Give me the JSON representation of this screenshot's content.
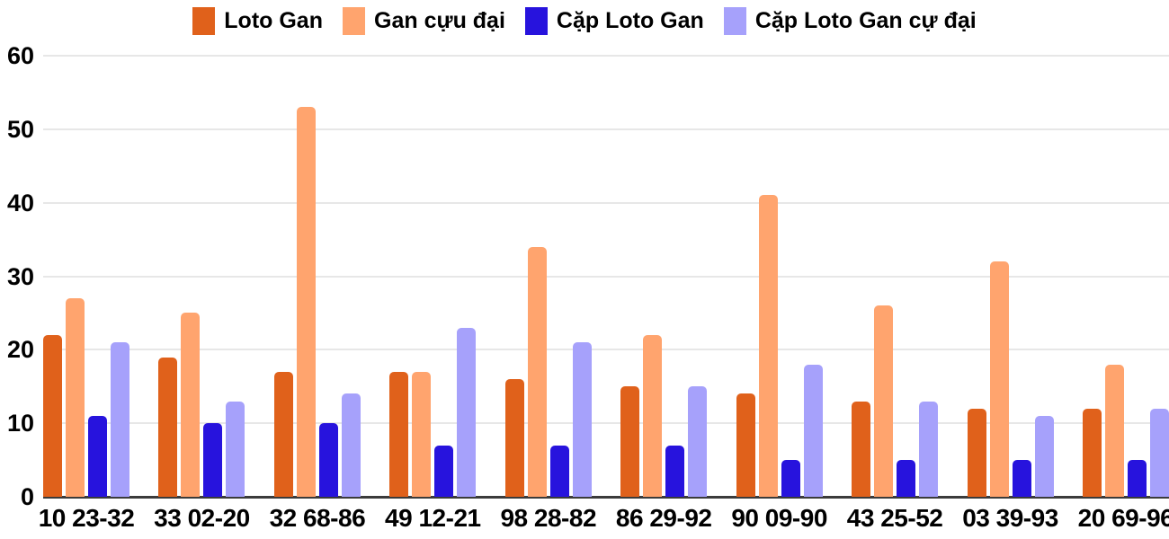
{
  "colors": {
    "background": "#ffffff",
    "grid": "#e7e7e7",
    "axis_line": "#3b3b3b",
    "text": "#000000"
  },
  "chart_data": {
    "type": "bar",
    "title": "",
    "xlabel": "",
    "ylabel": "",
    "grid": true,
    "legend_position": "top",
    "ylim": [
      0,
      60
    ],
    "yticks": [
      0,
      10,
      20,
      30,
      40,
      50,
      60
    ],
    "categories": [
      "10 23-32",
      "33 02-20",
      "32 68-86",
      "49 12-21",
      "98 28-82",
      "86 29-92",
      "90 09-90",
      "43 25-52",
      "03 39-93",
      "20 69-96"
    ],
    "series": [
      {
        "name": "Loto Gan",
        "color": "#e0611b",
        "values": [
          22,
          19,
          17,
          17,
          16,
          15,
          14,
          13,
          12,
          12
        ]
      },
      {
        "name": "Gan cựu đại",
        "color": "#ffa46e",
        "values": [
          27,
          25,
          53,
          17,
          34,
          22,
          41,
          26,
          32,
          18
        ]
      },
      {
        "name": "Cặp Loto Gan",
        "color": "#2713dd",
        "values": [
          11,
          10,
          10,
          7,
          7,
          7,
          5,
          5,
          5,
          5
        ]
      },
      {
        "name": "Cặp Loto Gan cự đại",
        "color": "#a6a1fb",
        "values": [
          21,
          13,
          14,
          23,
          21,
          15,
          18,
          13,
          11,
          12
        ]
      }
    ]
  }
}
